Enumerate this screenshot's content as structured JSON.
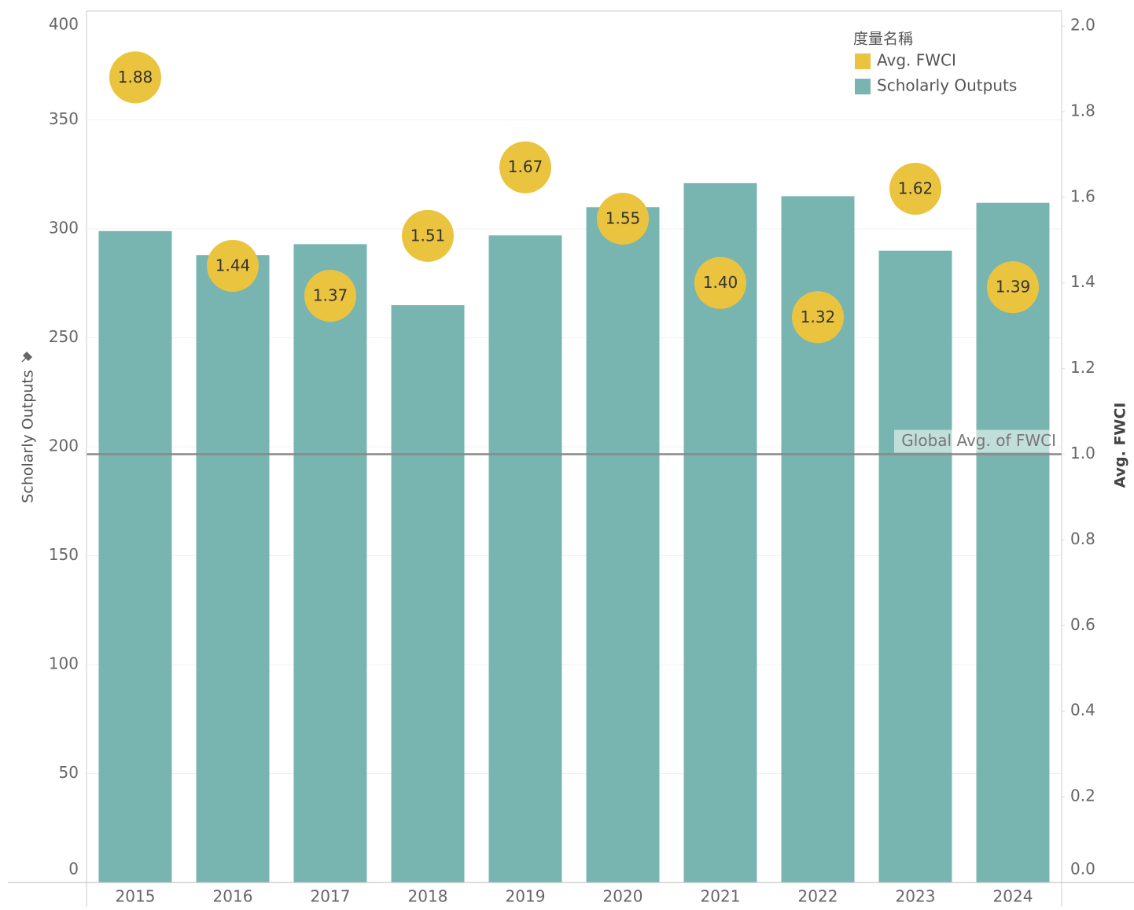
{
  "chart_data": {
    "type": "bar_dot",
    "categories": [
      "2015",
      "2016",
      "2017",
      "2018",
      "2019",
      "2020",
      "2021",
      "2022",
      "2023",
      "2024"
    ],
    "series": [
      {
        "name": "Scholarly Outputs",
        "color": "#79b5b0",
        "values": [
          299,
          288,
          293,
          265,
          297,
          310,
          321,
          315,
          290,
          312
        ]
      },
      {
        "name": "Avg. FWCI",
        "color": "#ebc43f",
        "axis": "y2",
        "values": [
          1.88,
          1.44,
          1.37,
          1.51,
          1.67,
          1.55,
          1.4,
          1.32,
          1.62,
          1.39
        ],
        "value_labels": [
          "1.88",
          "1.44",
          "1.37",
          "1.51",
          "1.67",
          "1.55",
          "1.40",
          "1.32",
          "1.62",
          "1.39"
        ]
      }
    ],
    "ylabel": "Scholarly Outputs",
    "y2label": "Avg. FWCI",
    "ylim": [
      0,
      400
    ],
    "yticks": [
      0,
      50,
      100,
      150,
      200,
      250,
      300,
      350,
      400
    ],
    "y2lim": [
      0,
      2.035
    ],
    "y2ticks": [
      {
        "value": 0,
        "label": "0.0"
      },
      0.2,
      0.4,
      0.6,
      0.8,
      {
        "value": 1,
        "label": "1.0"
      },
      1.2,
      1.4,
      1.6,
      1.8,
      {
        "value": 2,
        "label": "2.0"
      }
    ],
    "reference_line": {
      "label": "Global Avg. of FWCI",
      "value": 1.0,
      "axis": "y2"
    },
    "legend_title": "度量名稱",
    "legend": "top-right",
    "grid": true
  }
}
